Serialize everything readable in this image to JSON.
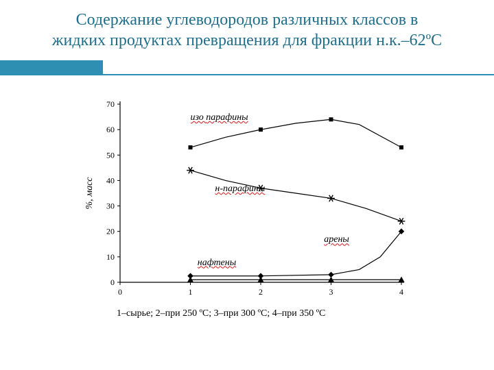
{
  "title_line1": "Содержание углеводородов различных классов в",
  "title_line2": "жидких продуктах превращения для фракции н.к.–62ºС",
  "title_color": "#1f6e8c",
  "accent_color": "#2f8fb3",
  "caption": "1–сырье; 2–при 250 ºС; 3–при 300 ºС; 4–при 350 ºС",
  "chart": {
    "type": "line",
    "bg": "#ffffff",
    "axis_color": "#000000",
    "axis_width": 1.2,
    "tick_font_size": 12,
    "ylabel": "%, масс",
    "ylabel_rotated": true,
    "ylabel_font_size": 14,
    "xlim": [
      0,
      4
    ],
    "ylim": [
      0,
      70
    ],
    "xticks": [
      0,
      1,
      2,
      3,
      4
    ],
    "yticks": [
      0,
      10,
      20,
      30,
      40,
      50,
      60,
      70
    ],
    "series": [
      {
        "name": "изо парафины",
        "label_prefix_wavy": "изо ",
        "label_rest": "парафины",
        "label_color": "#000000",
        "label_x": 1.0,
        "label_y": 63,
        "color": "#000000",
        "line_width": 1.2,
        "marker": "square",
        "marker_size": 6,
        "x": [
          1,
          2,
          3,
          4
        ],
        "y": [
          53,
          60,
          64,
          53
        ],
        "curve": [
          [
            1,
            53
          ],
          [
            1.5,
            57
          ],
          [
            2,
            60
          ],
          [
            2.5,
            62.5
          ],
          [
            3,
            64
          ],
          [
            3.4,
            62
          ],
          [
            4,
            53
          ]
        ]
      },
      {
        "name": "н-парафины",
        "label_prefix_wavy": "н-парафины",
        "label_rest": "",
        "label_color": "#000000",
        "label_x": 1.35,
        "label_y": 35,
        "color": "#000000",
        "line_width": 1.2,
        "marker": "asterisk",
        "marker_size": 7,
        "x": [
          1,
          2,
          3,
          4
        ],
        "y": [
          44,
          37,
          33,
          24
        ],
        "curve": [
          [
            1,
            44
          ],
          [
            1.5,
            40
          ],
          [
            2,
            37
          ],
          [
            2.5,
            35
          ],
          [
            3,
            33
          ],
          [
            3.5,
            29
          ],
          [
            4,
            24
          ]
        ]
      },
      {
        "name": "арены",
        "label_prefix_wavy": "арены",
        "label_rest": "",
        "label_color": "#000000",
        "label_x": 2.9,
        "label_y": 15,
        "color": "#000000",
        "line_width": 1.2,
        "marker": "diamond",
        "marker_size": 6,
        "x": [
          1,
          2,
          3,
          4
        ],
        "y": [
          2.5,
          2.5,
          3,
          20
        ],
        "curve": [
          [
            1,
            2.5
          ],
          [
            2,
            2.5
          ],
          [
            3,
            3
          ],
          [
            3.4,
            5
          ],
          [
            3.7,
            10
          ],
          [
            4,
            20
          ]
        ]
      },
      {
        "name": "нафтены",
        "label_prefix_wavy": "нафтены",
        "label_rest": "",
        "label_color": "#000000",
        "label_x": 1.1,
        "label_y": 6,
        "color": "#000000",
        "line_width": 1.2,
        "marker": "triangle",
        "marker_size": 6,
        "x": [
          1,
          2,
          3,
          4
        ],
        "y": [
          1,
          1,
          1,
          1
        ],
        "curve": [
          [
            1,
            1
          ],
          [
            2,
            1
          ],
          [
            3,
            1
          ],
          [
            4,
            1
          ]
        ]
      }
    ]
  }
}
